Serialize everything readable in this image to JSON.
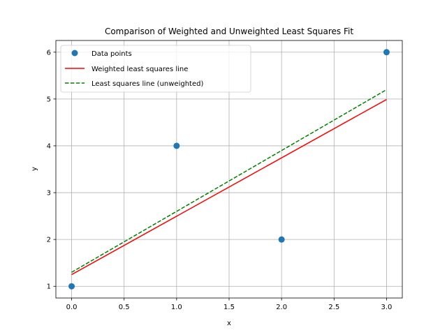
{
  "chart_data": {
    "type": "scatter",
    "title": "Comparison of Weighted and Unweighted Least Squares Fit",
    "xlabel": "x",
    "ylabel": "y",
    "xlim": [
      -0.15,
      3.15
    ],
    "ylim": [
      0.75,
      6.25
    ],
    "xticks": [
      0.0,
      0.5,
      1.0,
      1.5,
      2.0,
      2.5,
      3.0
    ],
    "xtick_labels": [
      "0.0",
      "0.5",
      "1.0",
      "1.5",
      "2.0",
      "2.5",
      "3.0"
    ],
    "yticks": [
      1,
      2,
      3,
      4,
      5,
      6
    ],
    "ytick_labels": [
      "1",
      "2",
      "3",
      "4",
      "5",
      "6"
    ],
    "grid": true,
    "legend_position": "top-left",
    "series": [
      {
        "name": "Data points",
        "kind": "scatter",
        "color": "#1f77b4",
        "x": [
          0,
          1,
          2,
          3
        ],
        "y": [
          1,
          4,
          2,
          6
        ]
      },
      {
        "name": "Weighted least squares line",
        "kind": "line",
        "style": "solid",
        "color": "#ff0000",
        "x": [
          0,
          3
        ],
        "y": [
          1.25,
          4.99
        ]
      },
      {
        "name": "Least squares line (unweighted)",
        "kind": "line",
        "style": "dashed",
        "color": "#008000",
        "x": [
          0,
          3
        ],
        "y": [
          1.3,
          5.2
        ]
      }
    ]
  }
}
